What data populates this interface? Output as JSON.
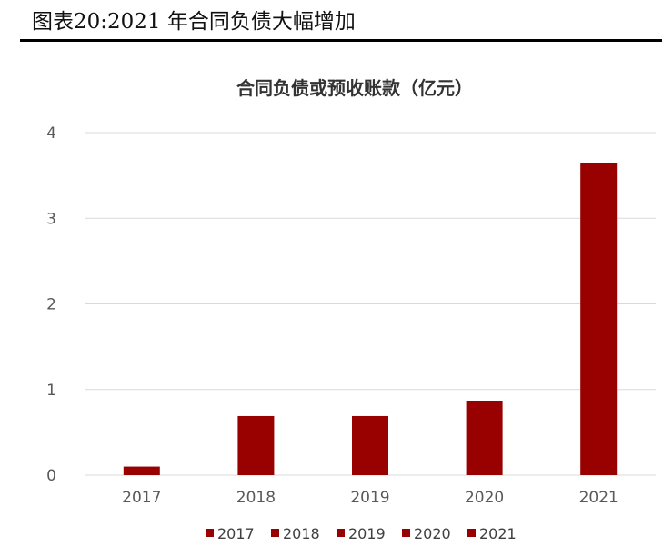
{
  "figure": {
    "title": "图表20:2021 年合同负债大幅增加"
  },
  "chart_data": {
    "type": "bar",
    "title": "合同负债或预收账款（亿元）",
    "categories": [
      "2017",
      "2018",
      "2019",
      "2020",
      "2021"
    ],
    "series": [
      {
        "name": "2017",
        "values": [
          0.1,
          null,
          null,
          null,
          null
        ]
      },
      {
        "name": "2018",
        "values": [
          null,
          0.69,
          null,
          null,
          null
        ]
      },
      {
        "name": "2019",
        "values": [
          null,
          null,
          0.69,
          null,
          null
        ]
      },
      {
        "name": "2020",
        "values": [
          null,
          null,
          null,
          0.87,
          null
        ]
      },
      {
        "name": "2021",
        "values": [
          null,
          null,
          null,
          null,
          3.65
        ]
      }
    ],
    "values": [
      0.1,
      0.69,
      0.69,
      0.87,
      3.65
    ],
    "yticks": [
      "0",
      "1",
      "2",
      "3",
      "4"
    ],
    "ylim": [
      0,
      4
    ],
    "xlabel": "",
    "ylabel": "",
    "grid": true,
    "legend": [
      "2017",
      "2018",
      "2019",
      "2020",
      "2021"
    ],
    "legend_position": "bottom",
    "bar_color": "#990000",
    "grid_color": "#d9d9d9"
  }
}
